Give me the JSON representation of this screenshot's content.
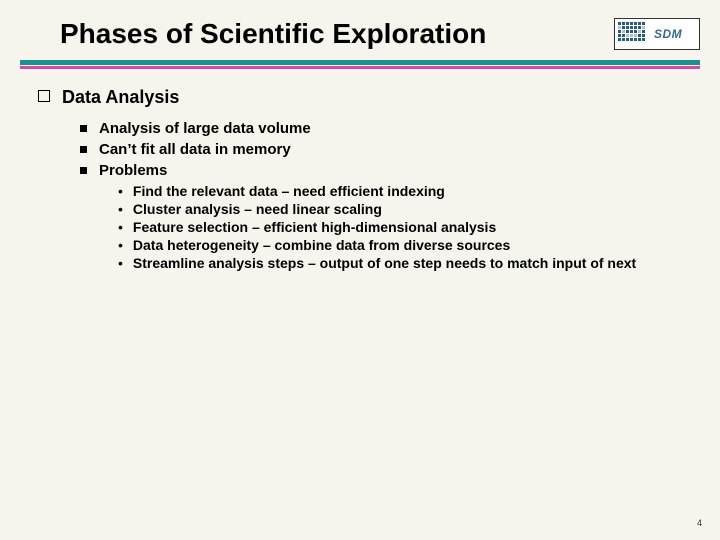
{
  "title": "Phases of Scientific Exploration",
  "logo_text": "SDM",
  "colors": {
    "background": "#f5f5ed",
    "rule_top": "#1a9090",
    "rule_bottom": "#d848a8",
    "title_fontsize": 28,
    "l1_fontsize": 18,
    "l2_fontsize": 15,
    "l3_fontsize": 14
  },
  "l1": {
    "text": "Data Analysis"
  },
  "l2": {
    "items": [
      "Analysis of large data volume",
      "Can’t fit all data in memory",
      "Problems"
    ]
  },
  "l3": {
    "items": [
      "Find the relevant data – need efficient indexing",
      "Cluster analysis – need linear scaling",
      "Feature selection – efficient high-dimensional analysis",
      "Data heterogeneity – combine data from diverse sources",
      "Streamline analysis steps – output of one step needs to match input of next"
    ]
  },
  "page_number": "4"
}
